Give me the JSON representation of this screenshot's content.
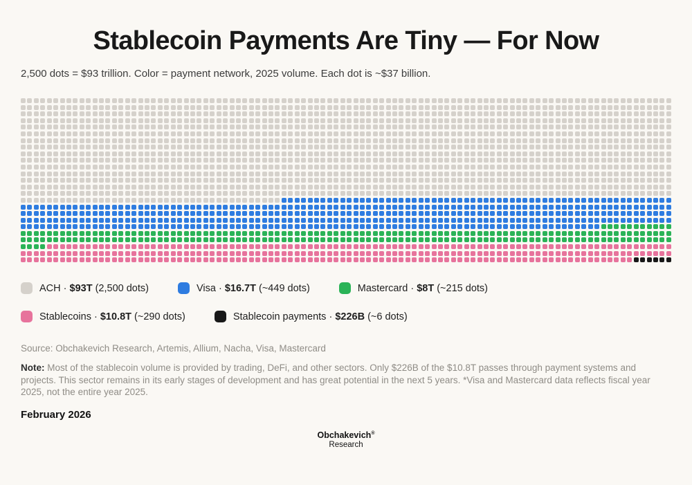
{
  "header": {
    "title": "Stablecoin Payments Are Tiny — For Now",
    "subtitle": "2,500 dots = $93 trillion. Color = payment network, 2025 volume. Each dot is ~$37 billion."
  },
  "chart_data": {
    "type": "waffle",
    "title": "Stablecoin Payments Are Tiny — For Now",
    "subtitle": "2,500 dots = $93 trillion. Color = payment network, 2025 volume. Each dot is ~$37 billion.",
    "total_dots": 2500,
    "grid_columns": 100,
    "grid_rows": 25,
    "total_value": "$93 trillion",
    "dot_value": "~$37 billion",
    "segments": [
      {
        "name": "ACH",
        "value": "$93T",
        "dots_label": "(2,500 dots)",
        "dots_rendered": 1540,
        "color": "#d5d1cb"
      },
      {
        "name": "Visa",
        "value": "$16.7T",
        "dots_label": "(~449 dots)",
        "dots_rendered": 449,
        "color": "#2e7ce0"
      },
      {
        "name": "Mastercard",
        "value": "$8T",
        "dots_label": "(~215 dots)",
        "dots_rendered": 215,
        "color": "#2ab357"
      },
      {
        "name": "Stablecoins",
        "value": "$10.8T",
        "dots_label": "(~290 dots)",
        "dots_rendered": 290,
        "color": "#e7739c"
      },
      {
        "name": "Stablecoin payments",
        "value": "$226B",
        "dots_label": "(~6 dots)",
        "dots_rendered": 6,
        "color": "#181818"
      }
    ],
    "legend_rows": [
      [
        0,
        1,
        2
      ],
      [
        3,
        4
      ]
    ]
  },
  "footer": {
    "source": "Source: Obchakevich Research, Artemis, Allium, Nacha, Visa, Mastercard",
    "note_label": "Note:",
    "note_text": " Most of the stablecoin volume is provided by trading, DeFi, and other sectors. Only $226B of the $10.8T passes through payment systems and projects. This sector remains in its early stages of development and has great potential in the next 5 years. *Visa and Mastercard data reflects fiscal year 2025, not the entire year 2025.",
    "date": "February 2026",
    "brand_name": "Obchakevich",
    "brand_reg": "®",
    "brand_sub": "Research"
  }
}
